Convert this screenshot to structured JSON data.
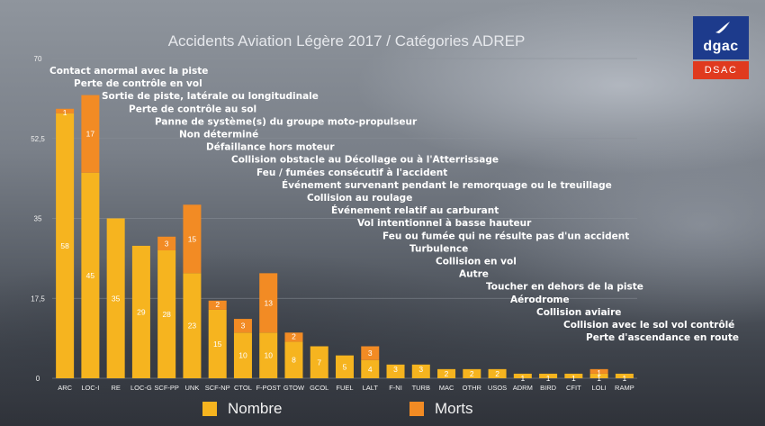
{
  "title": "Accidents Aviation Légère 2017 / Catégories ADREP",
  "logo": {
    "top_text": "dgac",
    "bottom_text": "DSAC",
    "icon": "bird-icon"
  },
  "colors": {
    "nombre": "#f6b41f",
    "morts": "#f28b24",
    "gridline": "#8a9099",
    "axis_text": "#f0f0f0"
  },
  "legend": {
    "nombre": "Nombre",
    "morts": "Morts"
  },
  "chart_data": {
    "type": "bar",
    "stacked": true,
    "title": "Accidents Aviation Légère 2017 / Catégories ADREP",
    "ylim": [
      0,
      70
    ],
    "yticks": [
      "0",
      "17,5",
      "35",
      "52,5",
      "70"
    ],
    "grid": true,
    "legend_position": "bottom",
    "categories": [
      "ARC",
      "LOC-I",
      "RE",
      "LOC-G",
      "SCF-PP",
      "UNK",
      "SCF-NP",
      "CTOL",
      "F-POST",
      "GTOW",
      "GCOL",
      "FUEL",
      "LALT",
      "F-NI",
      "TURB",
      "MAC",
      "OTHR",
      "USOS",
      "ADRM",
      "BIRD",
      "CFIT",
      "LOLI",
      "RAMP"
    ],
    "descriptions": [
      "Contact anormal avec la piste",
      "Perte de contrôle en vol",
      "Sortie de piste, latérale ou longitudinale",
      "Perte de contrôle au sol",
      "Panne de système(s) du groupe moto-propulseur",
      "Non déterminé",
      "Défaillance hors moteur",
      "Collision obstacle au Décollage ou à l'Atterrissage",
      "Feu / fumées consécutif à l'accident",
      "Événement survenant pendant le remorquage ou le treuillage",
      "Collision au roulage",
      "Événement relatif au carburant",
      "Vol intentionnel à basse hauteur",
      "Feu ou fumée qui ne résulte pas d'un accident",
      "Turbulence",
      "Collision en vol",
      "Autre",
      "Toucher en dehors de la piste",
      "Aérodrome",
      "Collision aviaire",
      "Collision avec le sol vol contrôlé",
      "Perte d'ascendance en route",
      ""
    ],
    "series": [
      {
        "name": "Nombre",
        "values": [
          58,
          45,
          35,
          29,
          28,
          23,
          15,
          10,
          10,
          8,
          7,
          5,
          4,
          3,
          3,
          2,
          2,
          2,
          1,
          1,
          1,
          1,
          1
        ]
      },
      {
        "name": "Morts",
        "values": [
          1,
          17,
          0,
          0,
          3,
          15,
          2,
          3,
          13,
          2,
          0,
          0,
          3,
          0,
          0,
          0,
          0,
          0,
          0,
          0,
          0,
          1,
          0
        ]
      }
    ]
  }
}
